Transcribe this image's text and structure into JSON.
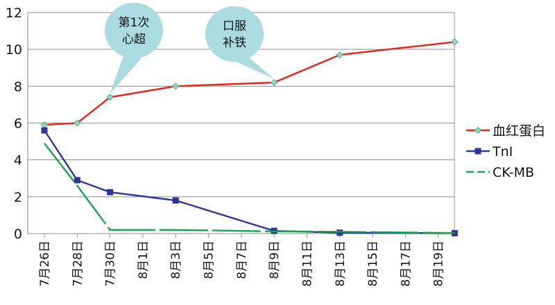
{
  "chart_data": {
    "type": "line",
    "title": "",
    "xlabel": "",
    "ylabel": "",
    "ylim": [
      0,
      12
    ],
    "yticks": [
      "0",
      "2",
      "4",
      "6",
      "8",
      "10",
      "12"
    ],
    "grid": "horizontal",
    "legend": "right",
    "categories": [
      "7月26日",
      "7月28日",
      "7月30日",
      "8月1日",
      "8月3日",
      "8月5日",
      "8月7日",
      "8月9日",
      "8月11日",
      "8月13日",
      "8月15日",
      "8月17日",
      "8月19日"
    ],
    "series": [
      {
        "name": "血红蛋白",
        "color": "#e2231a",
        "marker": "diamond",
        "marker_fill": "#8fd8c0",
        "points": [
          {
            "x": "7月26日",
            "y": 5.9
          },
          {
            "x": "7月28日",
            "y": 6.0
          },
          {
            "x": "7月30日",
            "y": 7.4
          },
          {
            "x": "8月3日",
            "y": 8.0
          },
          {
            "x": "8月9日",
            "y": 8.2
          },
          {
            "x": "8月13日",
            "y": 9.7
          },
          {
            "x": "8月20日",
            "y": 10.4
          }
        ]
      },
      {
        "name": "TnI",
        "color": "#2b3598",
        "marker": "square",
        "marker_fill": "#2b3598",
        "points": [
          {
            "x": "7月26日",
            "y": 5.6
          },
          {
            "x": "7月28日",
            "y": 2.9
          },
          {
            "x": "7月30日",
            "y": 2.25
          },
          {
            "x": "8月3日",
            "y": 1.8
          },
          {
            "x": "8月9日",
            "y": 0.15
          },
          {
            "x": "8月13日",
            "y": 0.05
          },
          {
            "x": "8月20日",
            "y": 0.02
          }
        ]
      },
      {
        "name": "CK-MB",
        "color": "#1aa24a",
        "marker": "none",
        "dashed": true,
        "points": [
          {
            "x": "7月26日",
            "y": 4.9
          },
          {
            "x": "7月28日",
            "y": 2.6
          },
          {
            "x": "7月30日",
            "y": 0.2
          },
          {
            "x": "8月3日",
            "y": 0.2
          },
          {
            "x": "8月9日",
            "y": 0.12
          },
          {
            "x": "8月13日",
            "y": 0.1
          },
          {
            "x": "8月20日",
            "y": 0.03
          }
        ]
      }
    ],
    "annotations": [
      {
        "lines": [
          "第1次",
          "心超"
        ],
        "points_to": {
          "x": "7月30日",
          "y": 7.4
        }
      },
      {
        "lines": [
          "口服",
          "补铁"
        ],
        "points_to": {
          "x": "8月9日",
          "y": 8.2
        }
      }
    ]
  }
}
